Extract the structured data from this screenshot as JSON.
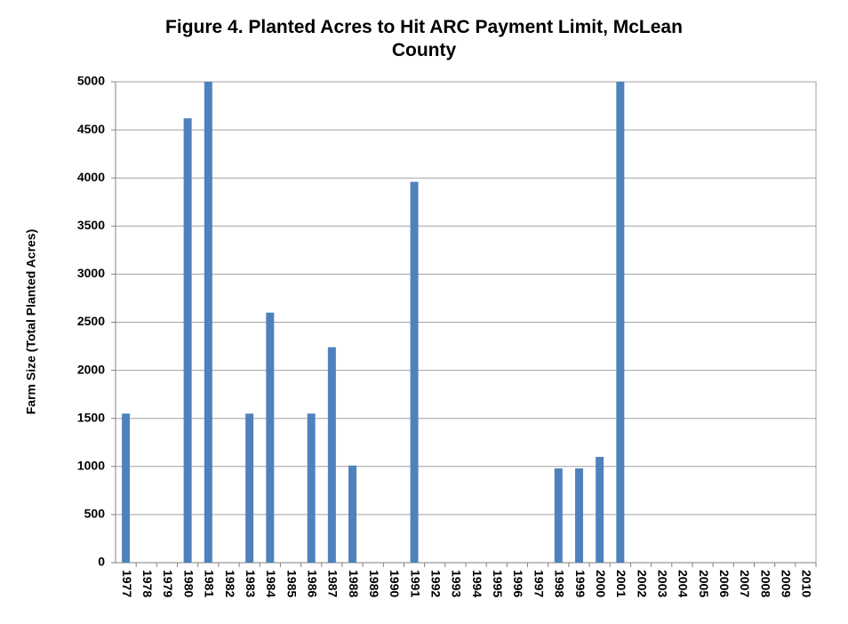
{
  "chart_data": {
    "type": "bar",
    "title": "Figure 4. Planted Acres to Hit ARC Payment Limit, McLean County",
    "y_label": "Farm Size (Total Planted Acres)",
    "categories": [
      "1977",
      "1978",
      "1979",
      "1980",
      "1981",
      "1982",
      "1983",
      "1984",
      "1985",
      "1986",
      "1987",
      "1988",
      "1989",
      "1990",
      "1991",
      "1992",
      "1993",
      "1994",
      "1995",
      "1996",
      "1997",
      "1998",
      "1999",
      "2000",
      "2001",
      "2002",
      "2003",
      "2004",
      "2005",
      "2006",
      "2007",
      "2008",
      "2009",
      "2010"
    ],
    "values": [
      1550,
      0,
      0,
      4620,
      5000,
      0,
      1550,
      2600,
      0,
      1550,
      2240,
      1010,
      0,
      0,
      3960,
      0,
      0,
      0,
      0,
      0,
      0,
      980,
      980,
      1100,
      5000,
      0,
      0,
      0,
      0,
      0,
      0,
      0,
      0,
      0
    ],
    "color": "#4f81bd",
    "ylim": [
      0,
      5000
    ],
    "yticks": [
      0,
      500,
      1000,
      1500,
      2000,
      2500,
      3000,
      3500,
      4000,
      4500,
      5000
    ],
    "grid": true
  }
}
